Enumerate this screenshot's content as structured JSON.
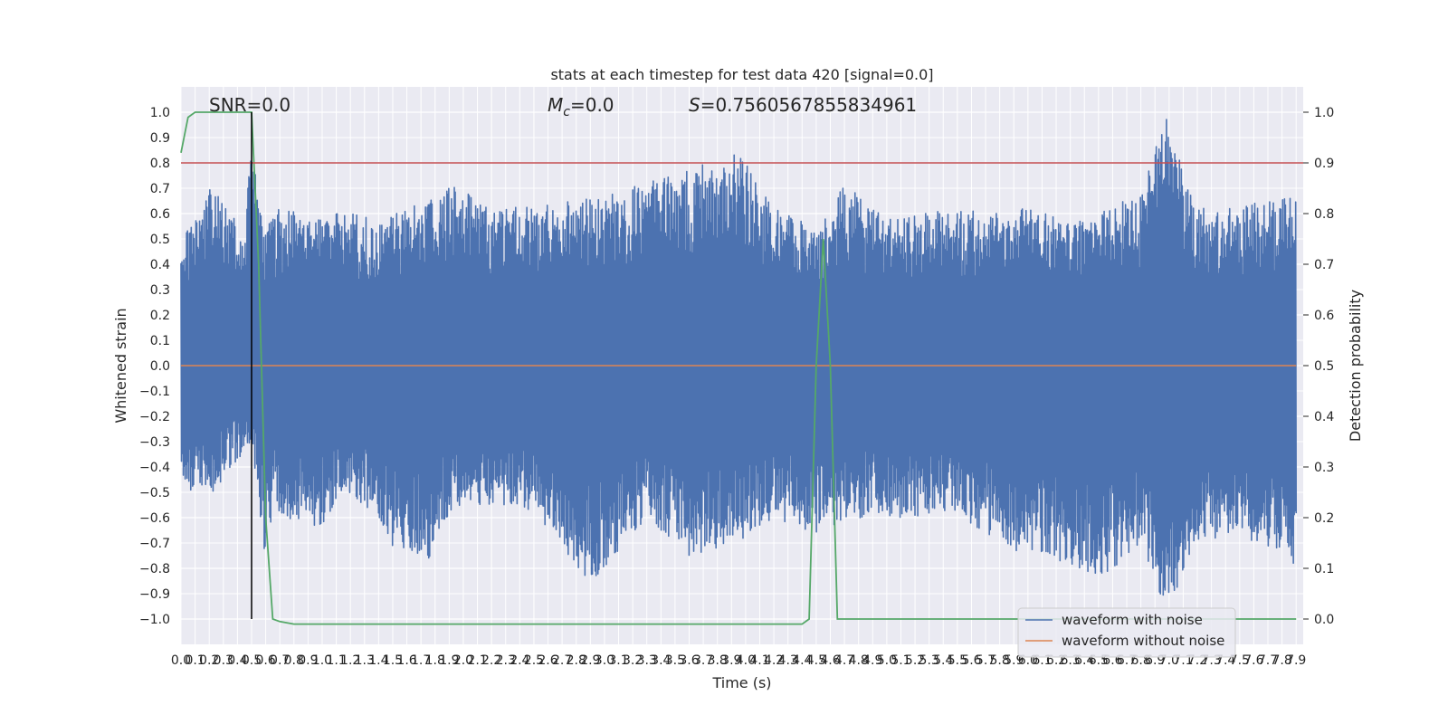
{
  "chart_data": {
    "type": "line",
    "title": "stats at each timestep for test data 420 [signal=0.0]",
    "xlabel": "Time (s)",
    "ylabel": "Whitened strain",
    "y2label": "Detection probability",
    "xlim": [
      0.0,
      7.95
    ],
    "ylim": [
      -1.1,
      1.1
    ],
    "y2lim": [
      -0.05,
      1.05
    ],
    "x_ticks": [
      0.0,
      0.1,
      0.2,
      0.3,
      0.4,
      0.5,
      0.6,
      0.7,
      0.8,
      0.9,
      1.0,
      1.1,
      1.2,
      1.3,
      1.4,
      1.5,
      1.6,
      1.7,
      1.8,
      1.9,
      2.0,
      2.1,
      2.2,
      2.3,
      2.4,
      2.5,
      2.6,
      2.7,
      2.8,
      2.9,
      3.0,
      3.1,
      3.2,
      3.3,
      3.4,
      3.5,
      3.6,
      3.7,
      3.8,
      3.9,
      4.0,
      4.1,
      4.2,
      4.3,
      4.4,
      4.5,
      4.6,
      4.7,
      4.8,
      4.9,
      5.0,
      5.1,
      5.2,
      5.3,
      5.4,
      5.5,
      5.6,
      5.7,
      5.8,
      5.9,
      6.0,
      6.1,
      6.2,
      6.3,
      6.4,
      6.5,
      6.6,
      6.7,
      6.8,
      6.9,
      7.0,
      7.1,
      7.2,
      7.3,
      7.4,
      7.5,
      7.6,
      7.7,
      7.8,
      7.9
    ],
    "x_tick_labels": [
      "0.0",
      "0.1",
      "0.2",
      "0.3",
      "0.4",
      "0.5",
      "0.6",
      "0.7",
      "0.8",
      "0.9",
      "1.0",
      "1.1",
      "1.2",
      "1.3",
      "1.4",
      "1.5",
      "1.6",
      "1.7",
      "1.8",
      "1.9",
      "2.0",
      "2.1",
      "2.2",
      "2.3",
      "2.4",
      "2.5",
      "2.6",
      "2.7",
      "2.8",
      "2.9",
      "3.0",
      "3.1",
      "3.2",
      "3.3",
      "3.4",
      "3.5",
      "3.6",
      "3.7",
      "3.8",
      "3.9",
      "4.0",
      "4.1",
      "4.2",
      "4.3",
      "4.4",
      "4.5",
      "4.6",
      "4.7",
      "4.8",
      "4.9",
      "5.0",
      "5.1",
      "5.2",
      "5.3",
      "5.4",
      "5.5",
      "5.6",
      "5.7",
      "5.8",
      "5.9",
      "6.0",
      "6.1",
      "6.2",
      "6.3",
      "6.4",
      "6.5",
      "6.6",
      "6.7",
      "6.8",
      "6.9",
      "7.0",
      "7.1",
      "7.2",
      "7.3",
      "7.4",
      "7.5",
      "7.6",
      "7.7",
      "7.8",
      "7.9"
    ],
    "y_ticks": [
      -1.0,
      -0.9,
      -0.8,
      -0.7,
      -0.6,
      -0.5,
      -0.4,
      -0.3,
      -0.2,
      -0.1,
      0.0,
      0.1,
      0.2,
      0.3,
      0.4,
      0.5,
      0.6,
      0.7,
      0.8,
      0.9,
      1.0
    ],
    "y_tick_labels": [
      "−1.0",
      "−0.9",
      "−0.8",
      "−0.7",
      "−0.6",
      "−0.5",
      "−0.4",
      "−0.3",
      "−0.2",
      "−0.1",
      "0.0",
      "0.1",
      "0.2",
      "0.3",
      "0.4",
      "0.5",
      "0.6",
      "0.7",
      "0.8",
      "0.9",
      "1.0"
    ],
    "y2_ticks": [
      0.0,
      0.1,
      0.2,
      0.3,
      0.4,
      0.5,
      0.6,
      0.7,
      0.8,
      0.9,
      1.0
    ],
    "y2_tick_labels": [
      "0.0",
      "0.1",
      "0.2",
      "0.3",
      "0.4",
      "0.5",
      "0.6",
      "0.7",
      "0.8",
      "0.9",
      "1.0"
    ],
    "grid": true,
    "legend_position": "lower-right",
    "annotations": {
      "snr": "SNR=0.0",
      "mc_symbol": "M",
      "mc_sub": "c",
      "mc_value": "=0.0",
      "s_symbol": "S",
      "s_value": "=0.7560567855834961"
    },
    "vertical_marker_x": 0.5,
    "threshold_probability": 0.9,
    "series": [
      {
        "name": "waveform with noise",
        "color": "#4c72b0",
        "style": "dense noise trace",
        "envelope": {
          "x": [
            0.0,
            0.05,
            0.15,
            0.22,
            0.3,
            0.35,
            0.45,
            0.5,
            0.6,
            0.65,
            0.75,
            0.85,
            0.95,
            1.05,
            1.15,
            1.3,
            1.4,
            1.5,
            1.75,
            1.9,
            2.0,
            2.2,
            2.5,
            2.9,
            3.3,
            3.6,
            3.95,
            4.2,
            4.5,
            4.7,
            5.0,
            5.5,
            6.0,
            6.3,
            6.5,
            6.8,
            6.98,
            7.2,
            7.5,
            7.9
          ],
          "upper": [
            0.5,
            0.55,
            0.6,
            0.73,
            0.63,
            0.6,
            0.53,
            0.9,
            0.53,
            0.6,
            0.65,
            0.6,
            0.58,
            0.6,
            0.6,
            0.6,
            0.55,
            0.6,
            0.65,
            0.73,
            0.7,
            0.62,
            0.63,
            0.66,
            0.72,
            0.78,
            0.85,
            0.62,
            0.55,
            0.72,
            0.58,
            0.62,
            0.62,
            0.58,
            0.6,
            0.69,
            1.0,
            0.62,
            0.63,
            0.67
          ],
          "lower": [
            -0.47,
            -0.5,
            -0.5,
            -0.52,
            -0.45,
            -0.4,
            -0.35,
            -0.3,
            -0.8,
            -0.55,
            -0.6,
            -0.62,
            -0.64,
            -0.6,
            -0.5,
            -0.55,
            -0.6,
            -0.72,
            -0.77,
            -0.6,
            -0.55,
            -0.55,
            -0.58,
            -0.86,
            -0.6,
            -0.75,
            -0.7,
            -0.6,
            -0.68,
            -0.6,
            -0.6,
            -0.6,
            -0.76,
            -0.78,
            -0.86,
            -0.7,
            -0.97,
            -0.7,
            -0.66,
            -0.8
          ]
        }
      },
      {
        "name": "waveform without noise",
        "color": "#dd8452",
        "x": [
          0.0,
          7.9
        ],
        "y": [
          0.0,
          0.0
        ]
      },
      {
        "name": "detection probability",
        "color": "#55a868",
        "axis": "right",
        "x": [
          0.0,
          0.05,
          0.1,
          0.15,
          0.5,
          0.55,
          0.6,
          0.65,
          0.7,
          0.8,
          4.4,
          4.45,
          4.5,
          4.55,
          4.6,
          4.65,
          7.9
        ],
        "y": [
          0.92,
          0.99,
          1.0,
          1.0,
          1.0,
          0.7,
          0.2,
          0.0,
          -0.005,
          -0.01,
          -0.01,
          0.0,
          0.5,
          0.75,
          0.5,
          0.0,
          0.0
        ]
      }
    ]
  }
}
